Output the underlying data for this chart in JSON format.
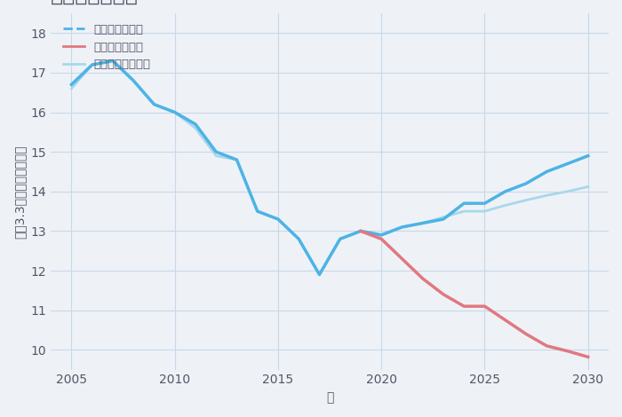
{
  "xlabel": "年",
  "ylabel": "坪（3.3㎡）単価（万円）",
  "background_color": "#eef2f7",
  "plot_background": "#eef2f7",
  "ylim": [
    9.5,
    18.5
  ],
  "xlim": [
    2004,
    2031
  ],
  "yticks": [
    10,
    11,
    12,
    13,
    14,
    15,
    16,
    17,
    18
  ],
  "xticks": [
    2005,
    2010,
    2015,
    2020,
    2025,
    2030
  ],
  "good_scenario": {
    "x": [
      2005,
      2006,
      2007,
      2008,
      2009,
      2010,
      2011,
      2012,
      2013,
      2014,
      2015,
      2016,
      2017,
      2018,
      2019,
      2020,
      2021,
      2022,
      2023,
      2024,
      2025,
      2026,
      2027,
      2028,
      2029,
      2030
    ],
    "y": [
      16.7,
      17.2,
      17.3,
      16.8,
      16.2,
      16.0,
      15.7,
      15.0,
      14.8,
      13.5,
      13.3,
      12.8,
      11.9,
      12.8,
      13.0,
      12.9,
      13.1,
      13.2,
      13.3,
      13.7,
      13.7,
      14.0,
      14.2,
      14.5,
      14.7,
      14.9
    ],
    "color": "#4db3e6",
    "linewidth": 2.5,
    "label": "グッドシナリオ"
  },
  "bad_scenario": {
    "x": [
      2019,
      2020,
      2021,
      2022,
      2023,
      2024,
      2025,
      2026,
      2027,
      2028,
      2029,
      2030
    ],
    "y": [
      13.0,
      12.8,
      12.3,
      11.8,
      11.4,
      11.1,
      11.1,
      10.75,
      10.4,
      10.1,
      9.97,
      9.82
    ],
    "color": "#e07880",
    "linewidth": 2.5,
    "label": "バッドシナリオ"
  },
  "normal_scenario": {
    "x": [
      2005,
      2006,
      2007,
      2008,
      2009,
      2010,
      2011,
      2012,
      2013,
      2014,
      2015,
      2016,
      2017,
      2018,
      2019,
      2020,
      2021,
      2022,
      2023,
      2024,
      2025,
      2026,
      2027,
      2028,
      2029,
      2030
    ],
    "y": [
      16.6,
      17.2,
      17.3,
      16.8,
      16.2,
      16.0,
      15.6,
      14.9,
      14.8,
      13.5,
      13.3,
      12.8,
      11.9,
      12.8,
      13.0,
      12.9,
      13.1,
      13.2,
      13.35,
      13.5,
      13.5,
      13.65,
      13.78,
      13.9,
      14.0,
      14.12
    ],
    "color": "#a8d8ea",
    "linewidth": 2.0,
    "label": "ノーマルシナリオ"
  },
  "grid_color": "#c8d8e8",
  "title_color": "#555566",
  "tick_color": "#555566",
  "legend_fontsize": 9.5,
  "title_fontsize": 17,
  "axis_label_fontsize": 10,
  "tick_fontsize": 10
}
